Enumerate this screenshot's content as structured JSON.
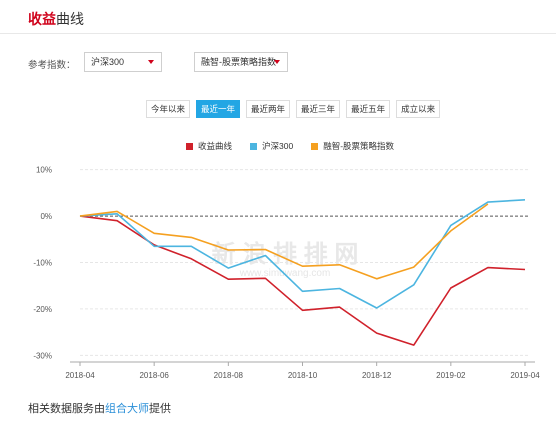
{
  "header": {
    "title_accent": "收益",
    "title_rest": "曲线"
  },
  "controls": {
    "ref_label": "参考指数：",
    "index_select": "沪深300",
    "strategy_select": "融智-股票策略指数",
    "accent_color": "#d0021b"
  },
  "tabs": [
    {
      "label": "今年以来",
      "active": false
    },
    {
      "label": "最近一年",
      "active": true
    },
    {
      "label": "最近两年",
      "active": false
    },
    {
      "label": "最近三年",
      "active": false
    },
    {
      "label": "最近五年",
      "active": false
    },
    {
      "label": "成立以来",
      "active": false
    }
  ],
  "watermark": {
    "line1": "新 浪 排 排 网",
    "line2": "www.simuwang.com"
  },
  "footer": {
    "before": "相关数据服务由",
    "link": "组合大师",
    "after": "提供"
  },
  "chart_data": {
    "type": "line",
    "x": [
      "2018-04",
      "2018-05",
      "2018-06",
      "2018-07",
      "2018-08",
      "2018-09",
      "2018-10",
      "2018-11",
      "2018-12",
      "2019-01",
      "2019-02",
      "2019-03",
      "2019-04"
    ],
    "x_ticks": [
      "2018-04",
      "2018-06",
      "2018-08",
      "2018-10",
      "2018-12",
      "2019-02",
      "2019-04"
    ],
    "y_ticks": [
      "10%",
      "0%",
      "-10%",
      "-20%",
      "-30%"
    ],
    "ylim": [
      -31,
      11
    ],
    "series": [
      {
        "name": "收益曲线",
        "color": "#d0212b",
        "values": [
          0,
          -1,
          -6.2,
          -9.2,
          -13.6,
          -13.4,
          -20.3,
          -19.6,
          -25.2,
          -27.8,
          -15.5,
          -11.1,
          -11.5
        ]
      },
      {
        "name": "沪深300",
        "color": "#4cb5e0",
        "values": [
          0,
          0.5,
          -6.5,
          -6.5,
          -11.2,
          -8.5,
          -16.2,
          -15.6,
          -19.8,
          -14.8,
          -2.0,
          3.0,
          3.5
        ]
      },
      {
        "name": "融智-股票策略指数",
        "color": "#f5a020",
        "values": [
          0,
          1.0,
          -3.7,
          -4.6,
          -7.3,
          -7.2,
          -10.8,
          -10.5,
          -13.5,
          -11.0,
          -3.2,
          2.6,
          null
        ]
      }
    ],
    "zero_line": true,
    "legend_position": "top-center"
  }
}
